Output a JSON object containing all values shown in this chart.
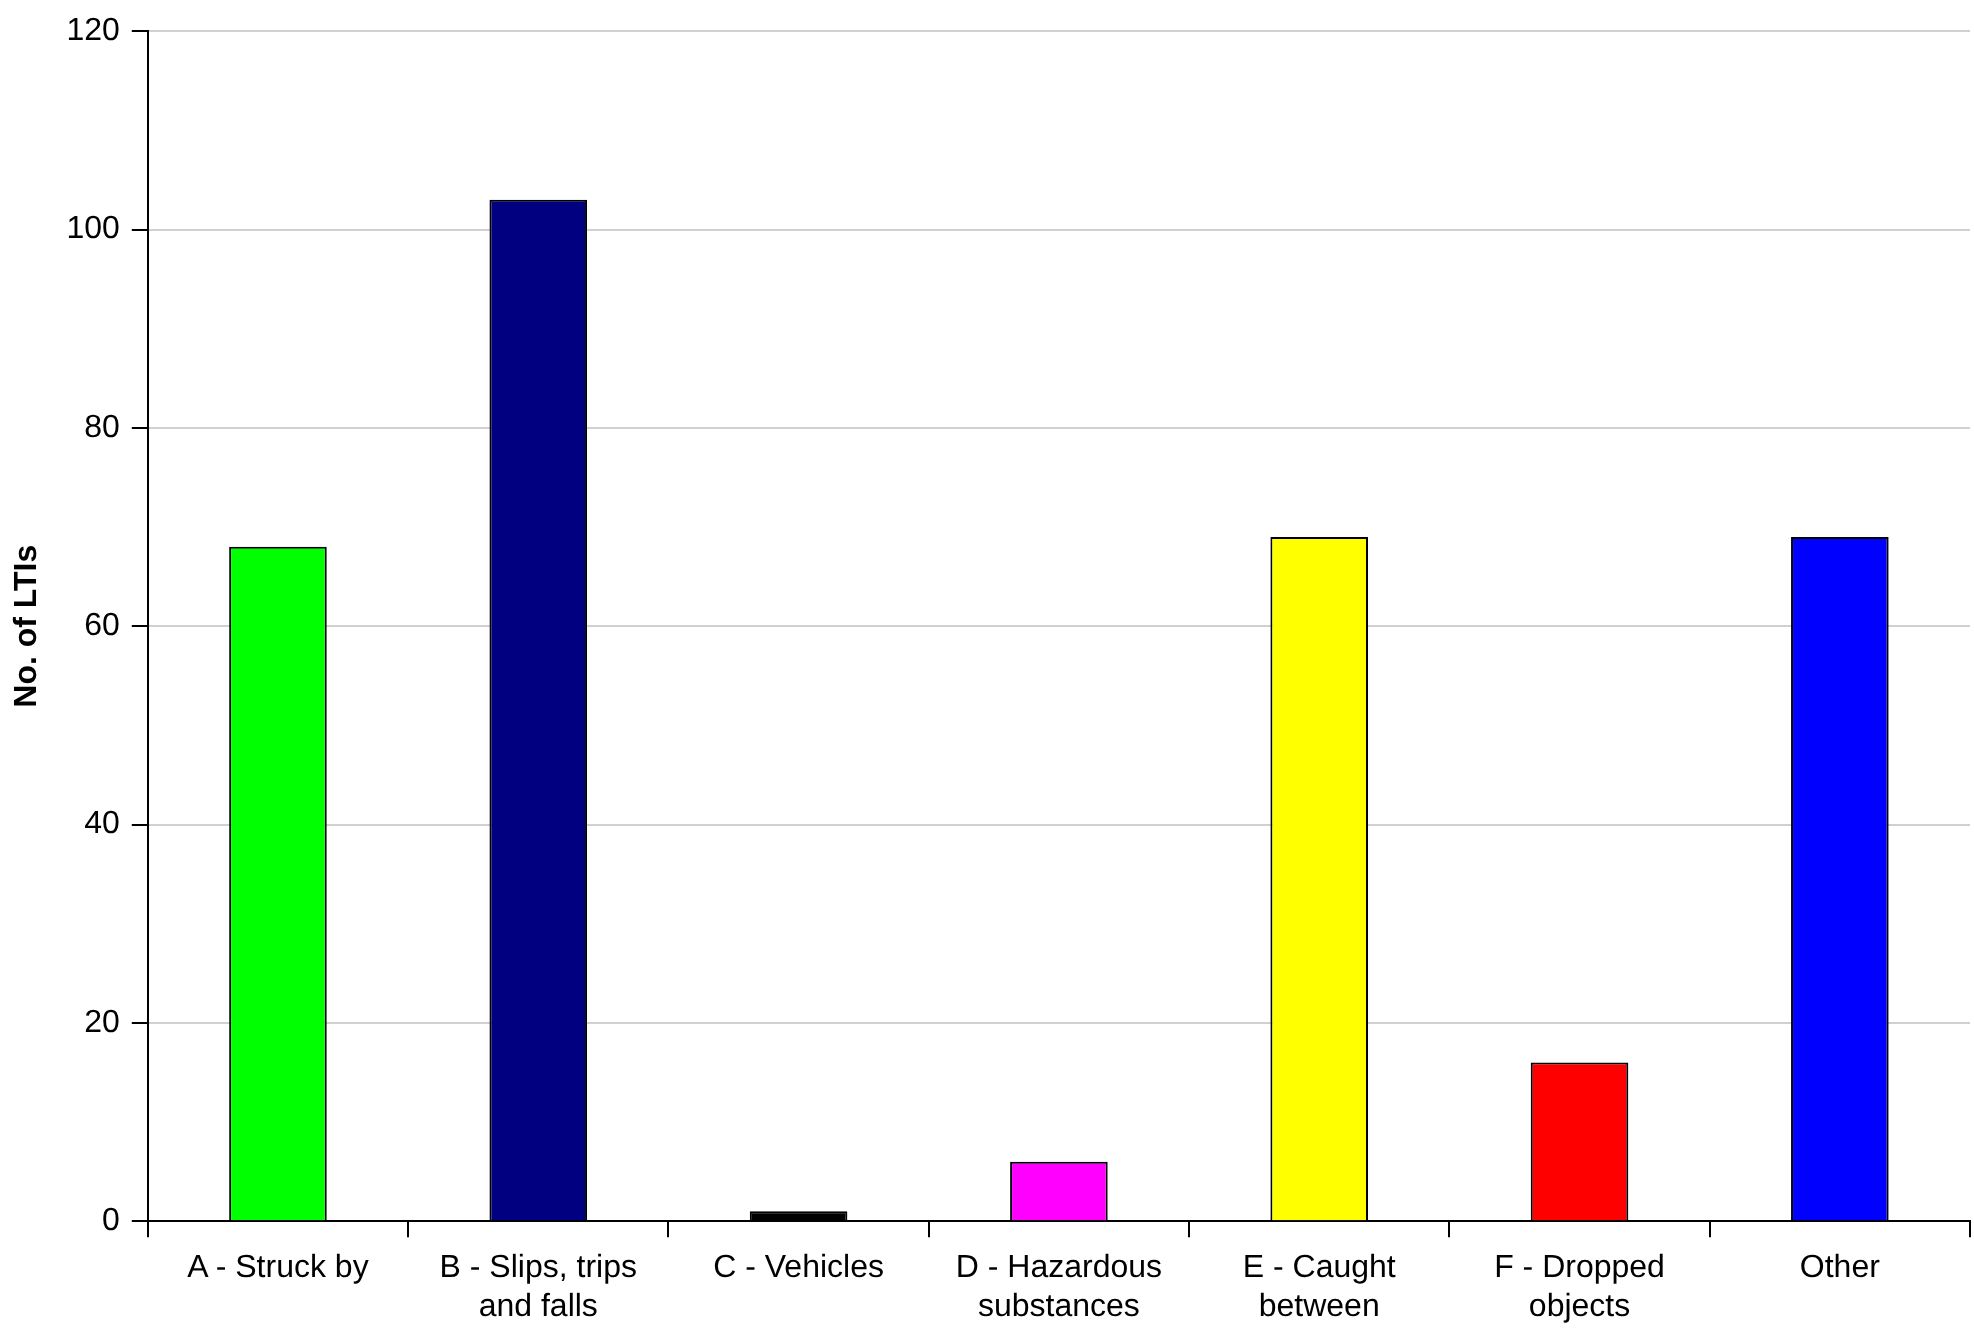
{
  "chart_data": {
    "type": "bar",
    "ylabel": "No. of LTIs",
    "categories": [
      "A - Struck by",
      "B - Slips, trips and falls",
      "C - Vehicles",
      "D - Hazardous substances",
      "E - Caught between",
      "F - Dropped objects",
      "Other"
    ],
    "values": [
      68,
      103,
      1,
      6,
      69,
      16,
      69
    ],
    "colors": [
      "#00ff00",
      "#000080",
      "#000000",
      "#ff00ff",
      "#ffff00",
      "#ff0000",
      "#0000ff"
    ],
    "ylim": [
      0,
      120
    ],
    "yticks": [
      0,
      20,
      40,
      60,
      80,
      100,
      120
    ],
    "grid": "y",
    "legend": false
  }
}
